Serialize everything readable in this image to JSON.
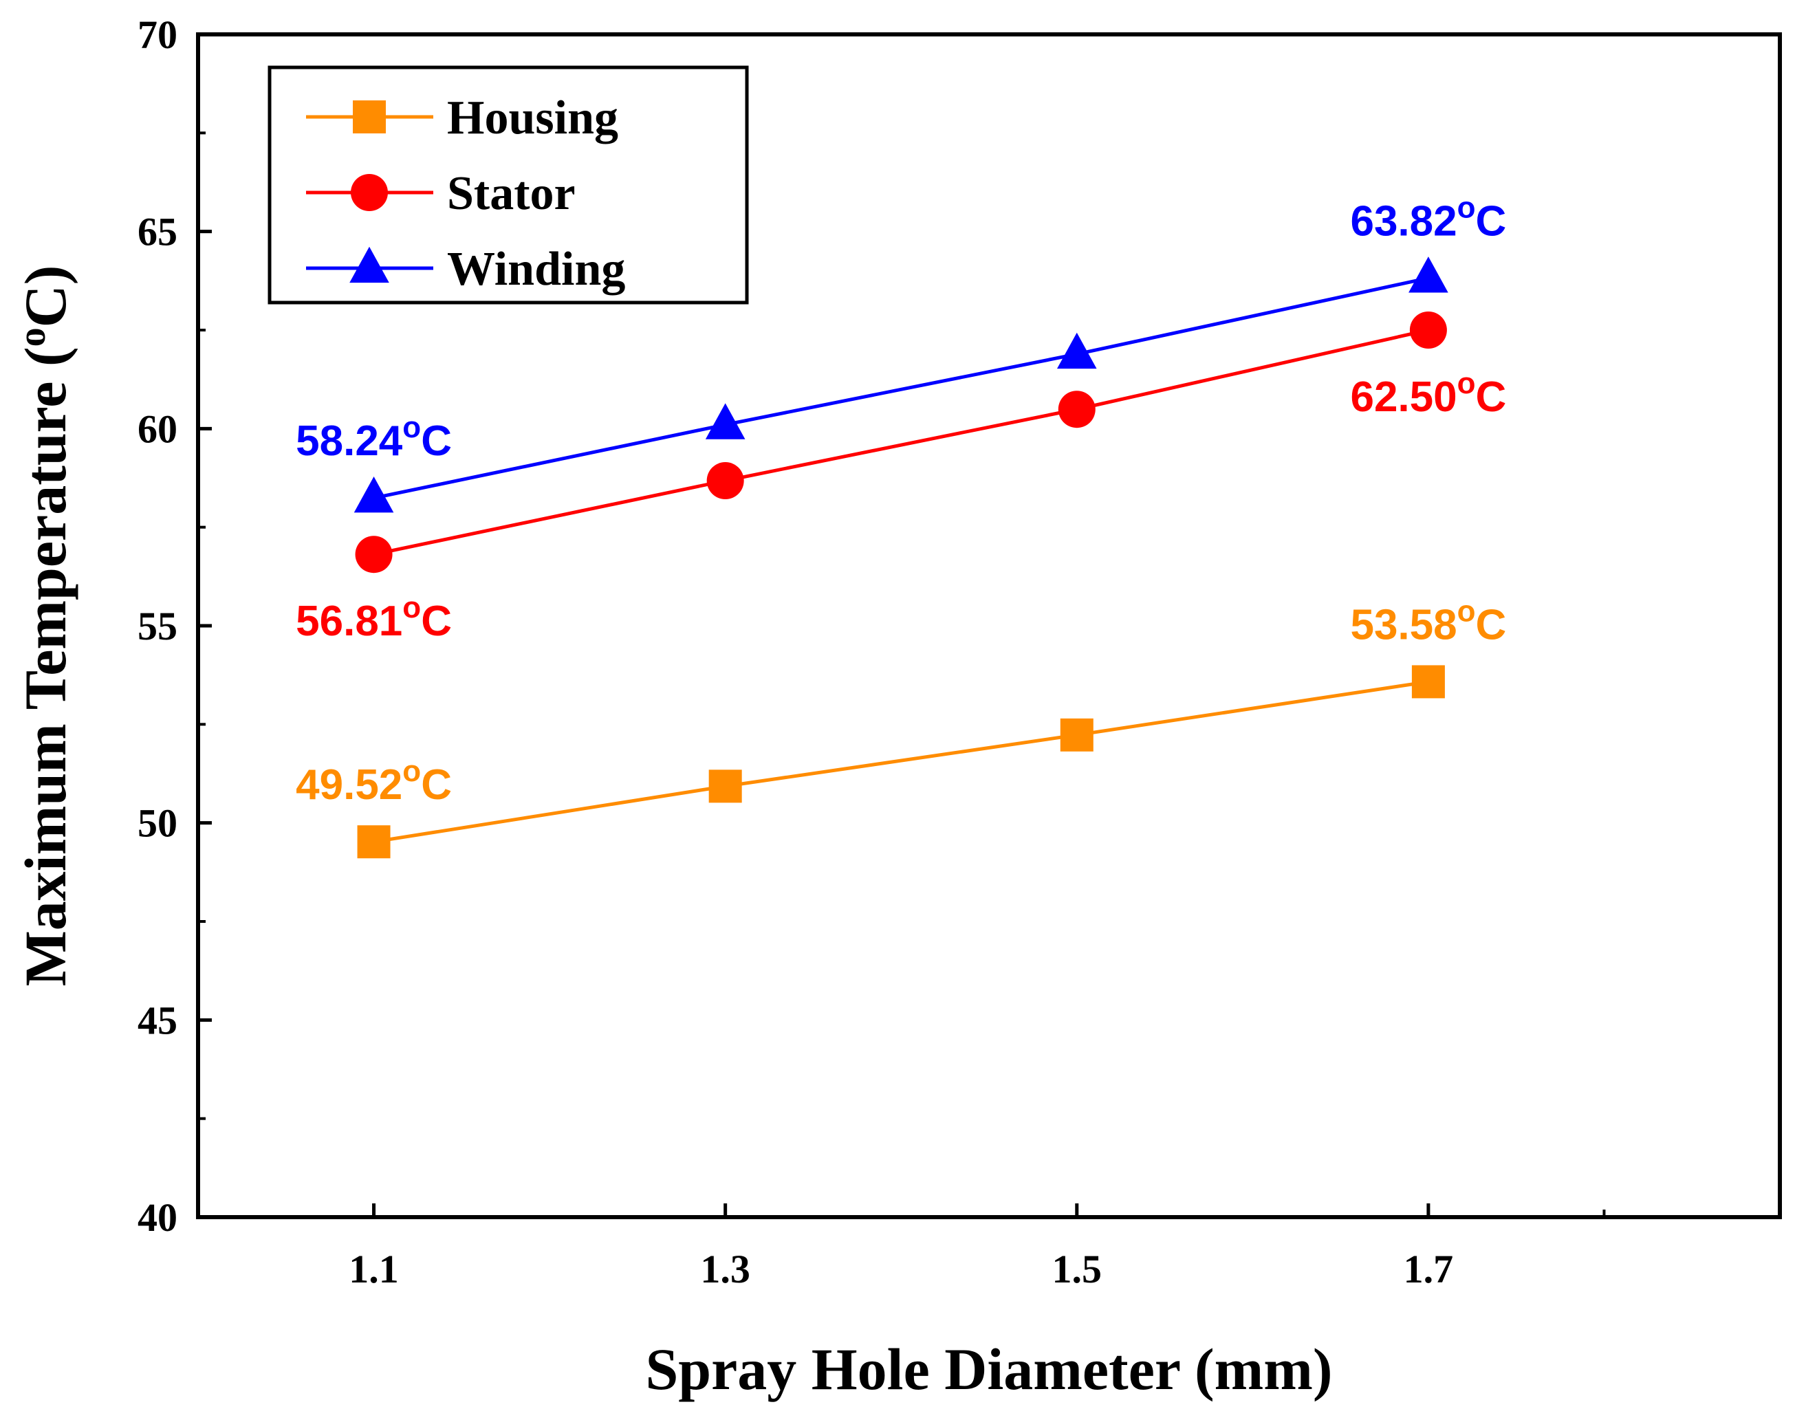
{
  "chart_data": {
    "type": "line",
    "title": "",
    "xlabel": "Spray Hole Diameter (mm)",
    "ylabel_main": "Maximum Temperature (",
    "ylabel_sup": "o",
    "ylabel_tail": "C)",
    "x": [
      1.1,
      1.3,
      1.5,
      1.7
    ],
    "x_tick_labels": [
      "1.1",
      "1.3",
      "1.5",
      "1.7"
    ],
    "xlim": [
      1.0,
      1.9
    ],
    "ylim": [
      40,
      70
    ],
    "y_ticks": [
      40,
      45,
      50,
      55,
      60,
      65,
      70
    ],
    "y_tick_labels": [
      "40",
      "45",
      "50",
      "55",
      "60",
      "65",
      "70"
    ],
    "legend_position": "top-left",
    "series": [
      {
        "name": "Housing",
        "color": "#FF8C00",
        "marker": "square",
        "values": [
          49.52,
          50.93,
          52.23,
          53.58
        ]
      },
      {
        "name": "Stator",
        "color": "#FF0000",
        "marker": "circle",
        "values": [
          56.81,
          58.68,
          60.49,
          62.5
        ]
      },
      {
        "name": "Winding",
        "color": "#0000FF",
        "marker": "triangle",
        "values": [
          58.24,
          60.1,
          61.89,
          63.82
        ]
      }
    ],
    "annotations": [
      {
        "series": "Winding",
        "x": 1.1,
        "y": 58.24,
        "value": "58.24",
        "unit_sup": "o",
        "unit": "C",
        "color": "#0000FF",
        "position": "above"
      },
      {
        "series": "Winding",
        "x": 1.7,
        "y": 63.82,
        "value": "63.82",
        "unit_sup": "o",
        "unit": "C",
        "color": "#0000FF",
        "position": "above"
      },
      {
        "series": "Stator",
        "x": 1.1,
        "y": 56.81,
        "value": "56.81",
        "unit_sup": "o",
        "unit": "C",
        "color": "#FF0000",
        "position": "below"
      },
      {
        "series": "Stator",
        "x": 1.7,
        "y": 62.5,
        "value": "62.50",
        "unit_sup": "o",
        "unit": "C",
        "color": "#FF0000",
        "position": "below"
      },
      {
        "series": "Housing",
        "x": 1.1,
        "y": 49.52,
        "value": "49.52",
        "unit_sup": "o",
        "unit": "C",
        "color": "#FF8C00",
        "position": "above"
      },
      {
        "series": "Housing",
        "x": 1.7,
        "y": 53.58,
        "value": "53.58",
        "unit_sup": "o",
        "unit": "C",
        "color": "#FF8C00",
        "position": "above"
      }
    ]
  }
}
